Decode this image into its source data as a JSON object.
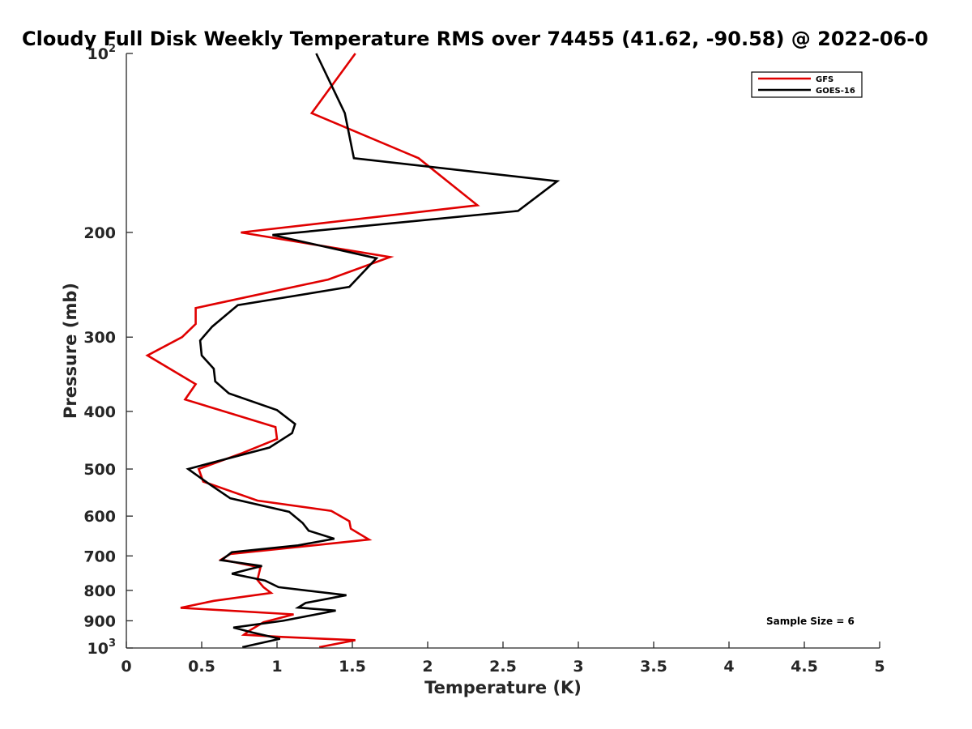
{
  "chart_data": {
    "type": "line",
    "title": "Cloudy Full Disk Weekly Temperature RMS over 74455 (41.62, -90.58) @ 2022-06-0",
    "xlabel": "Temperature (K)",
    "ylabel": "Pressure (mb)",
    "xlim": [
      0,
      5
    ],
    "ylim": [
      100,
      1000
    ],
    "y_scale": "log",
    "y_reversed": true,
    "grid": false,
    "legend_position": "top-right",
    "x_ticks": [
      0,
      0.5,
      1,
      1.5,
      2,
      2.5,
      3,
      3.5,
      4,
      4.5,
      5
    ],
    "x_tick_labels": [
      "0",
      "0.5",
      "1",
      "1.5",
      "2",
      "2.5",
      "3",
      "3.5",
      "4",
      "4.5",
      "5"
    ],
    "y_ticks": [
      100,
      200,
      300,
      400,
      500,
      600,
      700,
      800,
      900,
      1000
    ],
    "y_tick_labels": [
      {
        "base": "10",
        "exp": "2"
      },
      {
        "base": "200",
        "exp": ""
      },
      {
        "base": "300",
        "exp": ""
      },
      {
        "base": "400",
        "exp": ""
      },
      {
        "base": "500",
        "exp": ""
      },
      {
        "base": "600",
        "exp": ""
      },
      {
        "base": "700",
        "exp": ""
      },
      {
        "base": "800",
        "exp": ""
      },
      {
        "base": "900",
        "exp": ""
      },
      {
        "base": "10",
        "exp": "3"
      }
    ],
    "series": [
      {
        "name": "GFS",
        "color": "#e00000",
        "points": [
          [
            1.52,
            100
          ],
          [
            1.23,
            126
          ],
          [
            1.94,
            150
          ],
          [
            2.33,
            180
          ],
          [
            0.76,
            200
          ],
          [
            1.75,
            220
          ],
          [
            1.34,
            240
          ],
          [
            0.46,
            268
          ],
          [
            0.46,
            285
          ],
          [
            0.37,
            300
          ],
          [
            0.14,
            322
          ],
          [
            0.46,
            360
          ],
          [
            0.39,
            382
          ],
          [
            0.99,
            425
          ],
          [
            1.0,
            445
          ],
          [
            0.77,
            470
          ],
          [
            0.48,
            500
          ],
          [
            0.51,
            525
          ],
          [
            0.87,
            565
          ],
          [
            1.36,
            588
          ],
          [
            1.48,
            612
          ],
          [
            1.49,
            630
          ],
          [
            1.61,
            657
          ],
          [
            0.69,
            695
          ],
          [
            0.63,
            710
          ],
          [
            0.89,
            732
          ],
          [
            0.87,
            768
          ],
          [
            0.91,
            790
          ],
          [
            0.96,
            808
          ],
          [
            0.58,
            833
          ],
          [
            0.36,
            856
          ],
          [
            1.11,
            878
          ],
          [
            0.91,
            905
          ],
          [
            0.81,
            937
          ],
          [
            0.78,
            950
          ],
          [
            1.03,
            958
          ],
          [
            1.52,
            970
          ],
          [
            1.28,
            997
          ]
        ]
      },
      {
        "name": "GOES-16",
        "color": "#000000",
        "points": [
          [
            1.26,
            100
          ],
          [
            1.45,
            126
          ],
          [
            1.51,
            150
          ],
          [
            2.86,
            164
          ],
          [
            2.6,
            184
          ],
          [
            0.97,
            202
          ],
          [
            1.66,
            221
          ],
          [
            1.48,
            247
          ],
          [
            0.74,
            265
          ],
          [
            0.57,
            288
          ],
          [
            0.49,
            304
          ],
          [
            0.5,
            322
          ],
          [
            0.58,
            339
          ],
          [
            0.59,
            356
          ],
          [
            0.68,
            373
          ],
          [
            1.0,
            398
          ],
          [
            1.12,
            420
          ],
          [
            1.1,
            435
          ],
          [
            0.95,
            460
          ],
          [
            0.41,
            500
          ],
          [
            0.55,
            530
          ],
          [
            0.69,
            560
          ],
          [
            1.08,
            590
          ],
          [
            1.17,
            616
          ],
          [
            1.21,
            635
          ],
          [
            1.38,
            655
          ],
          [
            1.14,
            672
          ],
          [
            0.7,
            690
          ],
          [
            0.63,
            712
          ],
          [
            0.9,
            728
          ],
          [
            0.7,
            750
          ],
          [
            0.92,
            770
          ],
          [
            1.01,
            790
          ],
          [
            1.46,
            815
          ],
          [
            1.19,
            840
          ],
          [
            1.14,
            855
          ],
          [
            1.39,
            865
          ],
          [
            1.04,
            900
          ],
          [
            0.71,
            924
          ],
          [
            0.84,
            942
          ],
          [
            1.02,
            965
          ],
          [
            0.77,
            997
          ]
        ]
      }
    ],
    "annotation": "Sample Size = 6"
  }
}
